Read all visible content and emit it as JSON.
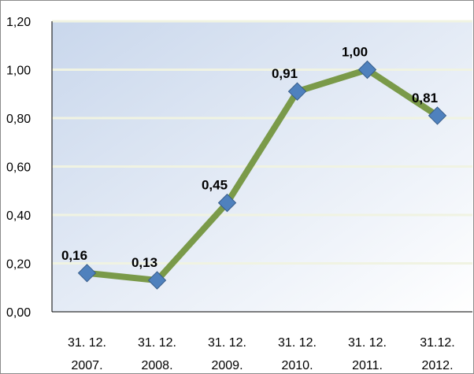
{
  "chart_data": {
    "type": "line",
    "categories": [
      [
        "31. 12.",
        "2007."
      ],
      [
        "31. 12.",
        "2008."
      ],
      [
        "31. 12.",
        "2009."
      ],
      [
        "31. 12.",
        "2010."
      ],
      [
        "31.  12.",
        "2011."
      ],
      [
        "31.12.",
        "2012."
      ]
    ],
    "values": [
      0.16,
      0.13,
      0.45,
      0.91,
      1.0,
      0.81
    ],
    "data_labels": [
      "0,16",
      "0,13",
      "0,45",
      "0,91",
      "1,00",
      "0,81"
    ],
    "ylim": [
      0,
      1.2
    ],
    "yticks": [
      0,
      0.2,
      0.4,
      0.6,
      0.8,
      1.0,
      1.2
    ],
    "ytick_labels": [
      "0,00",
      "0,20",
      "0,40",
      "0,60",
      "0,80",
      "1,00",
      "1,20"
    ],
    "grid": true,
    "legend": "none",
    "colors": {
      "line": "#7a9a49",
      "marker": "#4f81bd",
      "marker_edge": "#385d8a",
      "plot_bg_top": "#c9d7ec",
      "plot_bg_bottom": "#ffffff",
      "grid": "#f0f3e2",
      "axis": "#000000"
    }
  }
}
